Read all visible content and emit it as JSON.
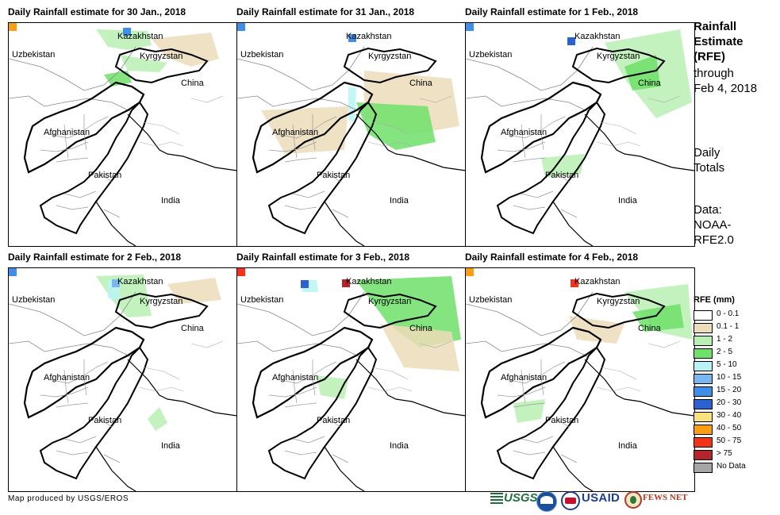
{
  "panels": [
    {
      "title": "Daily Rainfall estimate for 30 Jan., 2018"
    },
    {
      "title": "Daily Rainfall estimate for 31 Jan., 2018"
    },
    {
      "title": "Daily Rainfall estimate for 1 Feb., 2018"
    },
    {
      "title": "Daily Rainfall estimate for 2 Feb., 2018"
    },
    {
      "title": "Daily Rainfall estimate for 3 Feb., 2018"
    },
    {
      "title": "Daily Rainfall estimate for 4 Feb., 2018"
    }
  ],
  "map_labels": {
    "kazakhstan": "Kazakhstan",
    "uzbekistan": "Uzbekistan",
    "kyrgyzstan": "Kyrgyzstan",
    "china": "China",
    "afghanistan": "Afghanistan",
    "pakistan": "Pakistan",
    "india": "India"
  },
  "sidebar": {
    "title_lines": [
      "Rainfall",
      "Estimate",
      "(RFE)"
    ],
    "through_line1": "through",
    "through_line2": "Feb 4, 2018",
    "daily_line1": "Daily",
    "daily_line2": "Totals",
    "data_line1": "Data:",
    "data_line2": "NOAA-",
    "data_line3": "RFE2.0"
  },
  "legend": {
    "title": "RFE (mm)",
    "items": [
      {
        "label": "0 - 0.1",
        "color": "#ffffff"
      },
      {
        "label": "0.1 - 1",
        "color": "#ecdcb9"
      },
      {
        "label": "1 - 2",
        "color": "#b9f0b3"
      },
      {
        "label": "2 - 5",
        "color": "#6ee16a"
      },
      {
        "label": "5 - 10",
        "color": "#b8f4f5"
      },
      {
        "label": "10 - 15",
        "color": "#7ab6f2"
      },
      {
        "label": "15 - 20",
        "color": "#3f8fea"
      },
      {
        "label": "20 - 30",
        "color": "#2b61d2"
      },
      {
        "label": "30 - 40",
        "color": "#fbe27f"
      },
      {
        "label": "40 - 50",
        "color": "#fb9e10"
      },
      {
        "label": "50 - 75",
        "color": "#f2331a"
      },
      {
        "label": "> 75",
        "color": "#b4252b"
      },
      {
        "label": "No Data",
        "color": "#a5a5a5"
      }
    ]
  },
  "footer": {
    "credit": "Map produced by USGS/EROS"
  },
  "logos": {
    "usgs": "USGS",
    "usaid": "USAID",
    "fewsnet": "FEWS NET"
  }
}
